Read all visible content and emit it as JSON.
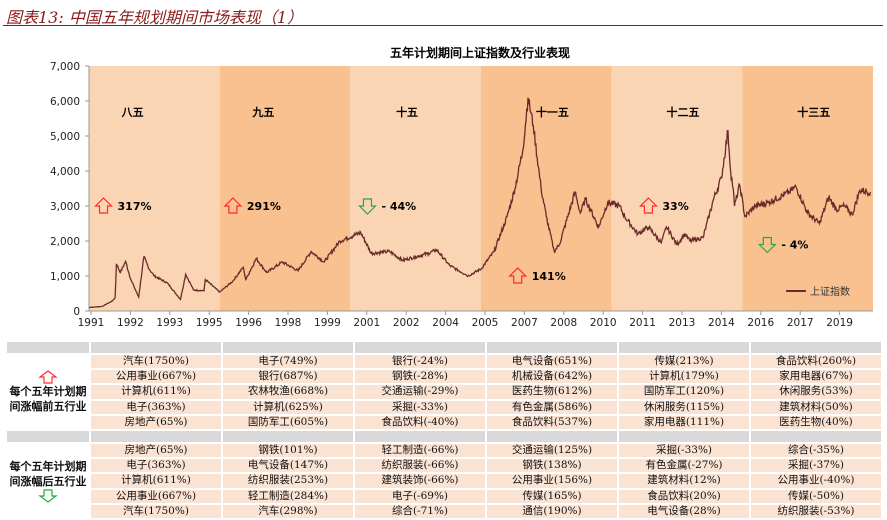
{
  "figure_title": "图表13:  中国五年规划期间市场表现（1）",
  "chart_data": {
    "type": "line",
    "title": "五年计划期间上证指数及行业表现",
    "ylim": [
      0,
      7000
    ],
    "yticks": [
      "0",
      "1,000",
      "2,000",
      "3,000",
      "4,000",
      "5,000",
      "6,000",
      "7,000"
    ],
    "xlim": [
      1991,
      2021
    ],
    "xtick_labels": [
      "1991",
      "1992",
      "1993",
      "1995",
      "1996",
      "1998",
      "1999",
      "2001",
      "2002",
      "2004",
      "2005",
      "2007",
      "2008",
      "2010",
      "2011",
      "2013",
      "2014",
      "2016",
      "2017",
      "2019"
    ],
    "grid": false,
    "legend": "bottom-right",
    "series": [
      {
        "name": "上证指数",
        "color": "#6b2b2b",
        "points": [
          [
            1991.0,
            100
          ],
          [
            1991.5,
            130
          ],
          [
            1991.9,
            290
          ],
          [
            1992.0,
            380
          ],
          [
            1992.05,
            1350
          ],
          [
            1992.2,
            1100
          ],
          [
            1992.4,
            1420
          ],
          [
            1992.6,
            900
          ],
          [
            1992.9,
            400
          ],
          [
            1993.1,
            1550
          ],
          [
            1993.3,
            1200
          ],
          [
            1993.5,
            1000
          ],
          [
            1994.0,
            800
          ],
          [
            1994.5,
            330
          ],
          [
            1994.7,
            1050
          ],
          [
            1995.0,
            600
          ],
          [
            1995.4,
            580
          ],
          [
            1995.45,
            900
          ],
          [
            1996.0,
            540
          ],
          [
            1996.5,
            850
          ],
          [
            1996.9,
            1250
          ],
          [
            1997.0,
            900
          ],
          [
            1997.4,
            1500
          ],
          [
            1997.8,
            1100
          ],
          [
            1998.4,
            1400
          ],
          [
            1999.0,
            1150
          ],
          [
            1999.5,
            1700
          ],
          [
            2000.0,
            1400
          ],
          [
            2000.6,
            2000
          ],
          [
            2001.4,
            2240
          ],
          [
            2001.8,
            1650
          ],
          [
            2002.5,
            1700
          ],
          [
            2003.0,
            1450
          ],
          [
            2003.5,
            1550
          ],
          [
            2004.0,
            1650
          ],
          [
            2004.3,
            1750
          ],
          [
            2004.8,
            1300
          ],
          [
            2005.4,
            1050
          ],
          [
            2005.5,
            1000
          ],
          [
            2006.0,
            1200
          ],
          [
            2006.5,
            1700
          ],
          [
            2007.0,
            2700
          ],
          [
            2007.3,
            3500
          ],
          [
            2007.6,
            4600
          ],
          [
            2007.8,
            6100
          ],
          [
            2008.0,
            5300
          ],
          [
            2008.3,
            3500
          ],
          [
            2008.5,
            2700
          ],
          [
            2008.8,
            1700
          ],
          [
            2009.0,
            1900
          ],
          [
            2009.6,
            3400
          ],
          [
            2009.8,
            2800
          ],
          [
            2010.0,
            3200
          ],
          [
            2010.5,
            2400
          ],
          [
            2010.85,
            3100
          ],
          [
            2011.3,
            3000
          ],
          [
            2011.5,
            2700
          ],
          [
            2012.0,
            2200
          ],
          [
            2012.4,
            2400
          ],
          [
            2012.9,
            1950
          ],
          [
            2013.1,
            2400
          ],
          [
            2013.5,
            1900
          ],
          [
            2013.8,
            2200
          ],
          [
            2014.0,
            2000
          ],
          [
            2014.5,
            2100
          ],
          [
            2014.9,
            3200
          ],
          [
            2015.2,
            3800
          ],
          [
            2015.45,
            5150
          ],
          [
            2015.55,
            4000
          ],
          [
            2015.65,
            3500
          ],
          [
            2015.7,
            3000
          ],
          [
            2015.9,
            3600
          ],
          [
            2016.1,
            2700
          ],
          [
            2016.5,
            3000
          ],
          [
            2017.0,
            3100
          ],
          [
            2017.8,
            3400
          ],
          [
            2018.05,
            3550
          ],
          [
            2018.5,
            2800
          ],
          [
            2018.95,
            2500
          ],
          [
            2019.3,
            3250
          ],
          [
            2019.6,
            2900
          ],
          [
            2019.9,
            3000
          ],
          [
            2020.2,
            2750
          ],
          [
            2020.5,
            3450
          ],
          [
            2020.9,
            3400
          ]
        ]
      }
    ],
    "periods": [
      {
        "label": "八五",
        "start": 1991,
        "end": 1996,
        "change": "317%",
        "direction": "up"
      },
      {
        "label": "九五",
        "start": 1996,
        "end": 2001,
        "change": "291%",
        "direction": "up"
      },
      {
        "label": "十五",
        "start": 2001,
        "end": 2006,
        "change": "- 44%",
        "direction": "down"
      },
      {
        "label": "十一五",
        "start": 2006,
        "end": 2011,
        "change": "141%",
        "direction": "up"
      },
      {
        "label": "十二五",
        "start": 2011,
        "end": 2016,
        "change": "33%",
        "direction": "up"
      },
      {
        "label": "十三五",
        "start": 2016,
        "end": 2021,
        "change": "- 4%",
        "direction": "down"
      }
    ],
    "band_colors": [
      "#fad5b3",
      "#f8c18f"
    ],
    "up_color": "#ff2a2a",
    "down_color": "#22aa44"
  },
  "table": {
    "top_label": "每个五年计划期间涨幅前五行业",
    "bottom_label": "每个五年计划期间涨幅后五行业",
    "top": [
      [
        "汽车(1750%)",
        "电子(749%)",
        "银行(-24%)",
        "电气设备(651%)",
        "传媒(213%)",
        "食品饮料(260%)"
      ],
      [
        "公用事业(667%)",
        "银行(687%)",
        "钢铁(-28%)",
        "机械设备(642%)",
        "计算机(179%)",
        "家用电器(67%)"
      ],
      [
        "计算机(611%)",
        "农林牧渔(668%)",
        "交通运输(-29%)",
        "医药生物(612%)",
        "国防军工(120%)",
        "休闲服务(53%)"
      ],
      [
        "电子(363%)",
        "计算机(625%)",
        "采掘(-33%)",
        "有色金属(586%)",
        "休闲服务(115%)",
        "建筑材料(50%)"
      ],
      [
        "房地产(65%)",
        "国防军工(605%)",
        "食品饮料(-40%)",
        "食品饮料(537%)",
        "家用电器(111%)",
        "医药生物(40%)"
      ]
    ],
    "bottom": [
      [
        "房地产(65%)",
        "钢铁(101%)",
        "轻工制造(-66%)",
        "交通运输(125%)",
        "采掘(-33%)",
        "综合(-35%)"
      ],
      [
        "电子(363%)",
        "电气设备(147%)",
        "纺织服装(-66%)",
        "钢铁(138%)",
        "有色金属(-27%)",
        "采掘(-37%)"
      ],
      [
        "计算机(611%)",
        "纺织服装(253%)",
        "建筑装饰(-66%)",
        "公用事业(156%)",
        "建筑材料(12%)",
        "公用事业(-40%)"
      ],
      [
        "公用事业(667%)",
        "轻工制造(284%)",
        "电子(-69%)",
        "传媒(165%)",
        "食品饮料(20%)",
        "传媒(-50%)"
      ],
      [
        "汽车(1750%)",
        "汽车(298%)",
        "综合(-71%)",
        "通信(190%)",
        "电气设备(28%)",
        "纺织服装(-53%)"
      ]
    ]
  }
}
